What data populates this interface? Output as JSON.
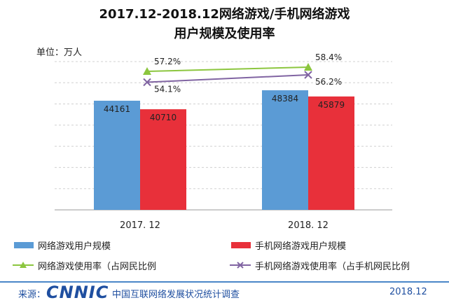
{
  "header": {
    "title_line1": "2017.12-2018.12网络游戏/手机网络游戏",
    "title_line2": "用户规模及使用率",
    "unit": "单位：万人"
  },
  "legend": {
    "bar1": "网络游戏用户规模",
    "bar2": "手机网络游戏用户规模",
    "line1": "网络游戏使用率（占网民比例",
    "line2": "手机网络游戏使用率（占手机网民比例"
  },
  "footer": {
    "source_label": "来源：",
    "logo": "CNNIC",
    "org": "中国互联网络发展状况统计调查",
    "date": "2018.12"
  },
  "colors": {
    "bar1": "#5b9bd5",
    "bar2": "#e8303a",
    "line1": "#8cc63f",
    "line2": "#8064a2"
  },
  "chart_data": {
    "type": "bar",
    "categories": [
      "2017. 12",
      "2018. 12"
    ],
    "series": [
      {
        "name": "网络游戏用户规模",
        "values": [
          44161,
          48384
        ]
      },
      {
        "name": "手机网络游戏用户规模",
        "values": [
          40710,
          45879
        ]
      }
    ],
    "line_series": [
      {
        "name": "网络游戏使用率（占网民比例",
        "values": [
          57.2,
          58.4
        ],
        "labels": [
          "57.2%",
          "58.4%"
        ]
      },
      {
        "name": "手机网络游戏使用率（占手机网民比例",
        "values": [
          54.1,
          56.2
        ],
        "labels": [
          "54.1%",
          "56.2%"
        ]
      }
    ],
    "ylim": [
      0,
      60000
    ],
    "grid": true
  }
}
